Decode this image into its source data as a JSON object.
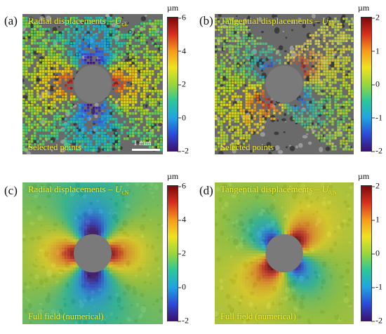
{
  "panels": [
    {
      "id": "a",
      "letter": "(a)",
      "title": "Radial displacements – ",
      "symbol": "U",
      "subscript": "r,E",
      "caption": "Selected points",
      "scalebar": "1 mm",
      "colorbar": {
        "unit": "µm",
        "ticks": [
          "6",
          "4",
          "2",
          "0",
          "-2"
        ],
        "min": -2,
        "max": 6
      },
      "field": "radial-measured"
    },
    {
      "id": "b",
      "letter": "(b)",
      "title": "Tangential displacements – ",
      "symbol": "U",
      "subscript": "θ,E",
      "caption": "Selected points",
      "colorbar": {
        "unit": "µm",
        "ticks": [
          "2",
          "1",
          "0",
          "-1",
          "-2"
        ],
        "min": -2,
        "max": 2
      },
      "field": "tangential-measured"
    },
    {
      "id": "c",
      "letter": "(c)",
      "title": "Radial displacements – ",
      "symbol": "U",
      "subscript": "r,N",
      "caption": "Full field (numerical)",
      "colorbar": {
        "unit": "µm",
        "ticks": [
          "6",
          "4",
          "2",
          "0",
          "-2"
        ],
        "min": -2,
        "max": 6
      },
      "field": "radial-numerical"
    },
    {
      "id": "d",
      "letter": "(d)",
      "title": "Tangential displacements – ",
      "symbol": "U",
      "subscript": "θ,N",
      "caption": "Full field (numerical)",
      "colorbar": {
        "unit": "µm",
        "ticks": [
          "2",
          "1",
          "0",
          "-1",
          "-2"
        ],
        "min": -2,
        "max": 2
      },
      "field": "tangential-numerical"
    }
  ],
  "colors": {
    "label_text": "#f2ee2c",
    "hole": "#7a7a7a",
    "speckle_bg": "#6a6a6a",
    "colormap": [
      "#3b0f70",
      "#2c4bd8",
      "#1fa5e0",
      "#2cc79a",
      "#9bd63a",
      "#f0e21f",
      "#f59a1c",
      "#d6301e",
      "#7a0a0a"
    ]
  }
}
